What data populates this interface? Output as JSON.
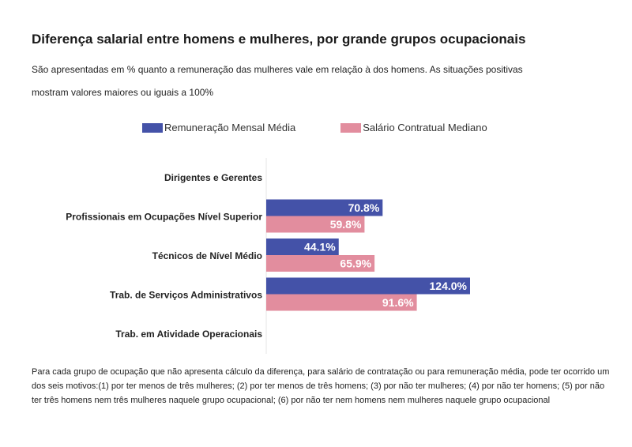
{
  "header": {
    "title": "Diferença salarial entre homens e mulheres, por grande grupos ocupacionais",
    "subtitle_line1": "São apresentadas em % quanto a remuneração das mulheres vale em relação à dos homens. As situações positivas",
    "subtitle_line2": "mostram valores maiores ou iguais a 100%"
  },
  "legend": {
    "items": [
      {
        "label": "Remuneração Mensal Média",
        "color": "#4452a8"
      },
      {
        "label": "Salário Contratual Mediano",
        "color": "#e28d9e"
      }
    ]
  },
  "chart_data": {
    "type": "bar",
    "orientation": "horizontal",
    "categories": [
      "Dirigentes e Gerentes",
      "Profissionais em Ocupações Nível Superior",
      "Técnicos de Nível Médio",
      "Trab. de Serviços Administrativos",
      "Trab. em Atividade Operacionais"
    ],
    "series": [
      {
        "name": "Remuneração Mensal Média",
        "color": "#4452a8",
        "values": [
          null,
          70.8,
          44.1,
          124.0,
          null
        ],
        "labels": [
          "",
          "70.8%",
          "44.1%",
          "124.0%",
          ""
        ]
      },
      {
        "name": "Salário Contratual Mediano",
        "color": "#e28d9e",
        "values": [
          null,
          59.8,
          65.9,
          91.6,
          null
        ],
        "labels": [
          "",
          "59.8%",
          "65.9%",
          "91.6%",
          ""
        ]
      }
    ],
    "xlim": [
      0,
      124
    ]
  },
  "footnote": {
    "text": "Para cada grupo de ocupação que não apresenta cálculo da diferença, para salário de contratação ou para remuneração média, pode ter ocorrido um dos seis motivos:(1) por ter menos de três mulheres; (2) por ter menos de três homens; (3) por não ter mulheres; (4) por não ter homens; (5) por não ter três homens nem três mulheres naquele grupo ocupacional; (6) por não ter nem homens nem mulheres naquele grupo ocupacional"
  }
}
